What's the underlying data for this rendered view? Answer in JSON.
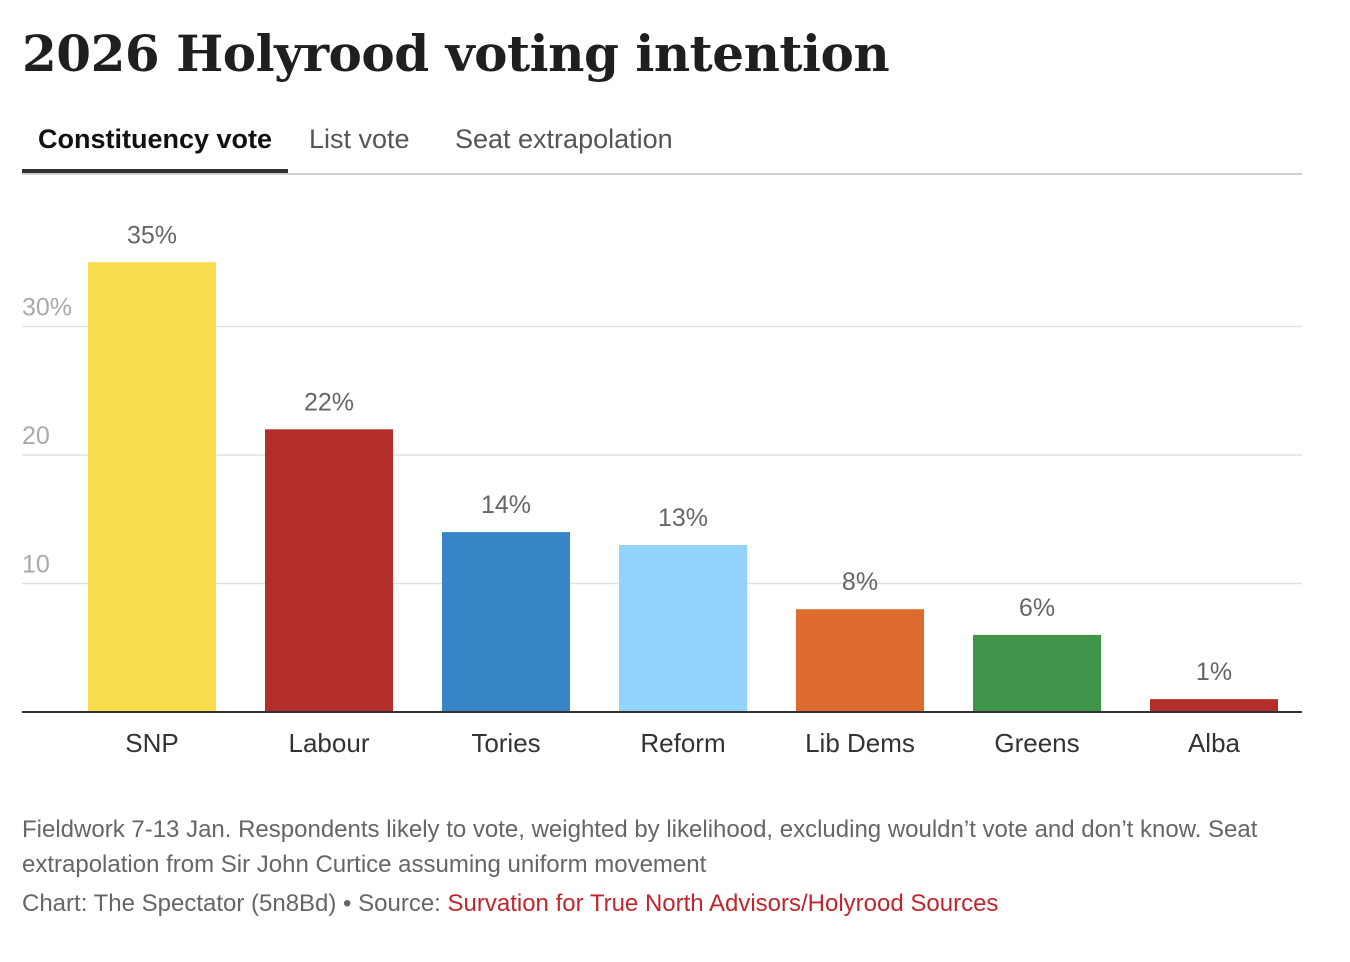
{
  "title": "2026 Holyrood voting intention",
  "tabs": [
    {
      "label": "Constituency vote",
      "active": true
    },
    {
      "label": "List vote",
      "active": false
    },
    {
      "label": "Seat extrapolation",
      "active": false
    }
  ],
  "chart_data": {
    "type": "bar",
    "title": "2026 Holyrood voting intention",
    "categories": [
      "SNP",
      "Labour",
      "Tories",
      "Reform",
      "Lib Dems",
      "Greens",
      "Alba"
    ],
    "values": [
      35,
      22,
      14,
      13,
      8,
      6,
      1
    ],
    "value_labels": [
      "35%",
      "22%",
      "14%",
      "13%",
      "8%",
      "6%",
      "1%"
    ],
    "colors": [
      "#f7dc4d",
      "#b32e2a",
      "#3886c8",
      "#93d4fc",
      "#dd6b30",
      "#3f9549",
      "#b32e2a"
    ],
    "yticks": [
      10,
      20,
      30
    ],
    "ytick_labels": [
      "10",
      "20",
      "30%"
    ],
    "ylim": [
      0,
      38
    ],
    "xlabel": "",
    "ylabel": "",
    "grid": true
  },
  "footer": {
    "note": "Fieldwork 7-13 Jan. Respondents likely to vote, weighted by likelihood, excluding wouldn’t vote and don’t know. Seat extrapolation from Sir John Curtice assuming uniform movement",
    "credit_prefix": "Chart: The Spectator (5n8Bd) • Source: ",
    "source_link": "Survation for True North Advisors/Holyrood Sources",
    "source_color": "#c0262c"
  }
}
